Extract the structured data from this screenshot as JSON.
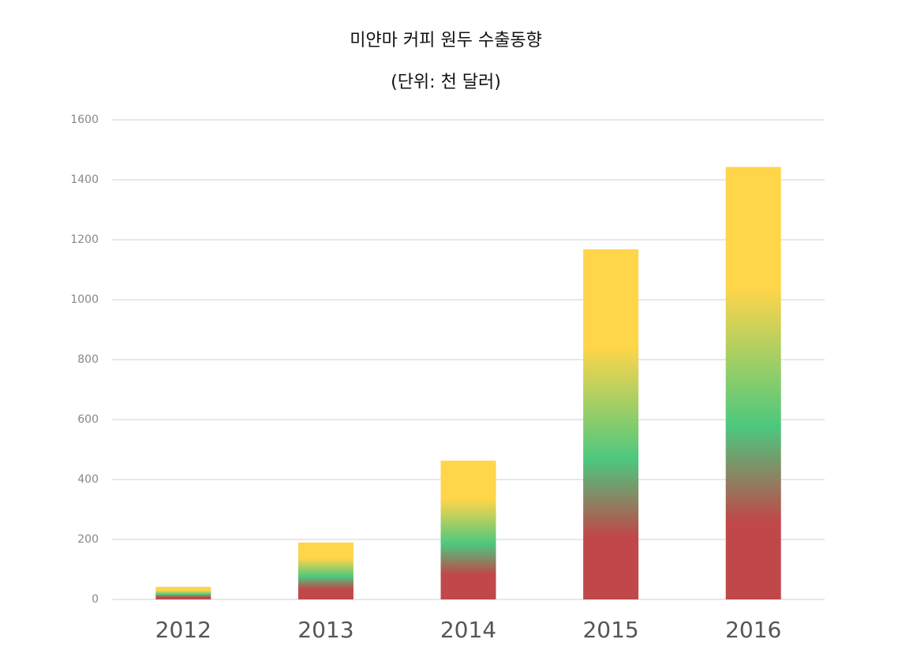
{
  "chart_data": {
    "type": "bar",
    "title": "미얀마 커피 원두 수출동향",
    "subtitle": "(단위: 천 달러)",
    "categories": [
      "2012",
      "2013",
      "2014",
      "2015",
      "2016"
    ],
    "values": [
      42,
      190,
      463,
      1168,
      1443
    ],
    "colors": [
      "#c0484a",
      "#4cc87e",
      "#ffd54a"
    ],
    "ylim": [
      0,
      1600
    ],
    "yticks": [
      0,
      200,
      400,
      600,
      800,
      1000,
      1200,
      1400,
      1600
    ],
    "grid": true
  }
}
